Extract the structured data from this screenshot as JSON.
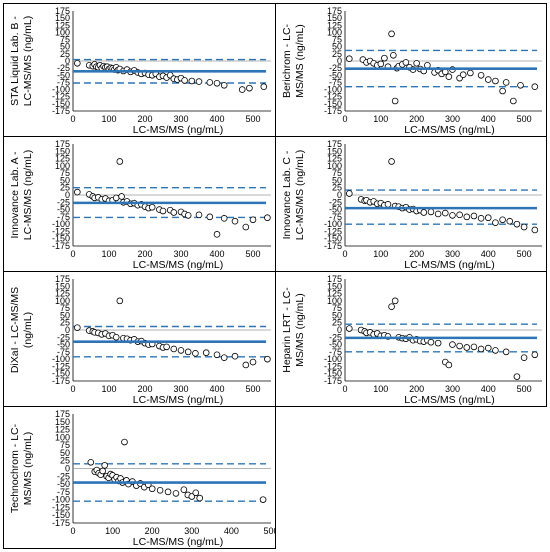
{
  "chart_data": [
    {
      "type": "scatter",
      "xlabel": "LC-MS/MS (ng/mL)",
      "ylabel_lines": [
        "STA Liquid Lab. B -",
        "LC-MS/MS (ng/mL)"
      ],
      "xlim": [
        0,
        550
      ],
      "xticks": [
        0,
        100,
        200,
        300,
        400,
        500
      ],
      "ylim": [
        -175,
        175
      ],
      "yticks": [
        175,
        150,
        125,
        100,
        75,
        50,
        25,
        0,
        -25,
        -50,
        -75,
        -100,
        -125,
        -150,
        -175
      ],
      "bias": -36,
      "loa_upper": 5,
      "loa_lower": -77,
      "x": [
        12,
        45,
        55,
        60,
        65,
        70,
        75,
        80,
        85,
        90,
        95,
        100,
        105,
        110,
        115,
        120,
        125,
        130,
        140,
        150,
        160,
        170,
        180,
        190,
        200,
        210,
        220,
        230,
        240,
        250,
        260,
        270,
        280,
        290,
        300,
        310,
        330,
        350,
        380,
        400,
        420,
        470,
        490,
        530
      ],
      "y": [
        -8,
        -15,
        -18,
        -12,
        -20,
        -22,
        -15,
        -25,
        -18,
        -22,
        -20,
        -28,
        -24,
        -26,
        -30,
        -22,
        -32,
        -28,
        -35,
        -30,
        -38,
        -33,
        -40,
        -45,
        -42,
        -48,
        -50,
        -45,
        -55,
        -52,
        -58,
        -50,
        -62,
        -65,
        -60,
        -68,
        -70,
        -72,
        -75,
        -78,
        -85,
        -100,
        -95,
        -90
      ]
    },
    {
      "type": "scatter",
      "xlabel": "LC-MS/MS (ng/mL)",
      "ylabel_lines": [
        "Berichrom - LC-",
        "MS/MS (ng/mL)"
      ],
      "xlim": [
        0,
        550
      ],
      "xticks": [
        0,
        100,
        200,
        300,
        400,
        500
      ],
      "ylim": [
        -175,
        175
      ],
      "yticks": [
        175,
        150,
        125,
        100,
        75,
        50,
        25,
        0,
        -25,
        -50,
        -75,
        -100,
        -125,
        -150,
        -175
      ],
      "bias": -27,
      "loa_upper": 37,
      "loa_lower": -90,
      "x": [
        12,
        50,
        60,
        70,
        80,
        90,
        100,
        110,
        120,
        130,
        135,
        140,
        145,
        150,
        160,
        170,
        180,
        190,
        200,
        210,
        220,
        230,
        250,
        260,
        270,
        280,
        290,
        300,
        320,
        330,
        350,
        380,
        400,
        420,
        440,
        450,
        470,
        490,
        530
      ],
      "y": [
        8,
        5,
        -5,
        0,
        -8,
        -15,
        -10,
        10,
        -20,
        95,
        20,
        -140,
        -25,
        -18,
        -12,
        -5,
        -22,
        -30,
        -8,
        -28,
        -35,
        -15,
        -40,
        -32,
        -45,
        -38,
        -55,
        -30,
        -60,
        -48,
        -42,
        -50,
        -65,
        -70,
        -105,
        -75,
        -140,
        -85,
        -90
      ]
    },
    {
      "type": "scatter",
      "xlabel": "LC-MS/MS (ng/mL)",
      "ylabel_lines": [
        "Innovance Lab. A -",
        "LC-MS/MS (ng/mL)"
      ],
      "xlim": [
        0,
        550
      ],
      "xticks": [
        0,
        100,
        200,
        300,
        400,
        500
      ],
      "ylim": [
        -175,
        175
      ],
      "yticks": [
        175,
        150,
        125,
        100,
        75,
        50,
        25,
        0,
        -25,
        -50,
        -75,
        -100,
        -125,
        -150,
        -175
      ],
      "bias": -27,
      "loa_upper": 25,
      "loa_lower": -77,
      "x": [
        12,
        45,
        55,
        60,
        70,
        80,
        90,
        100,
        110,
        120,
        130,
        135,
        140,
        150,
        160,
        170,
        180,
        190,
        200,
        210,
        220,
        240,
        250,
        270,
        280,
        300,
        310,
        320,
        350,
        380,
        400,
        420,
        450,
        480,
        500,
        540
      ],
      "y": [
        10,
        2,
        -5,
        -10,
        -8,
        -15,
        -12,
        -20,
        -18,
        -10,
        115,
        -5,
        -25,
        -22,
        -30,
        -28,
        -35,
        -32,
        -40,
        -45,
        -42,
        -50,
        -55,
        -52,
        -60,
        -58,
        -65,
        -70,
        -68,
        -75,
        -135,
        -80,
        -90,
        -110,
        -85,
        -78
      ]
    },
    {
      "type": "scatter",
      "xlabel": "LC-MS/MS (ng/mL)",
      "ylabel_lines": [
        "Innovance Lab. C -",
        "LC-MS/MS (ng/mL)"
      ],
      "xlim": [
        0,
        550
      ],
      "xticks": [
        0,
        100,
        200,
        300,
        400,
        500
      ],
      "ylim": [
        -175,
        175
      ],
      "yticks": [
        175,
        150,
        125,
        100,
        75,
        50,
        25,
        0,
        -25,
        -50,
        -75,
        -100,
        -125,
        -150,
        -175
      ],
      "bias": -45,
      "loa_upper": 17,
      "loa_lower": -100,
      "x": [
        12,
        45,
        55,
        60,
        70,
        80,
        90,
        100,
        110,
        120,
        130,
        140,
        150,
        160,
        170,
        180,
        190,
        200,
        210,
        220,
        240,
        260,
        280,
        300,
        320,
        340,
        360,
        380,
        400,
        420,
        440,
        460,
        480,
        500,
        530
      ],
      "y": [
        5,
        -15,
        -20,
        -18,
        -25,
        -22,
        -30,
        -28,
        -35,
        -32,
        115,
        -38,
        -40,
        -45,
        -42,
        -50,
        -48,
        -55,
        -52,
        -60,
        -58,
        -65,
        -62,
        -70,
        -68,
        -75,
        -72,
        -80,
        -78,
        -95,
        -85,
        -90,
        -100,
        -110,
        -120
      ]
    },
    {
      "type": "scatter",
      "xlabel": "LC-MS/MS (ng/mL)",
      "ylabel_lines": [
        "DiXaI - LC-MS/MS",
        "(ng/mL)"
      ],
      "xlim": [
        0,
        550
      ],
      "xticks": [
        0,
        100,
        200,
        300,
        400,
        500
      ],
      "ylim": [
        -175,
        175
      ],
      "yticks": [
        175,
        150,
        125,
        100,
        75,
        50,
        25,
        0,
        -25,
        -50,
        -75,
        -100,
        -125,
        -150,
        -175
      ],
      "bias": -40,
      "loa_upper": 12,
      "loa_lower": -92,
      "x": [
        12,
        45,
        55,
        60,
        70,
        80,
        90,
        100,
        110,
        120,
        130,
        140,
        150,
        160,
        170,
        180,
        190,
        200,
        210,
        220,
        240,
        250,
        260,
        280,
        300,
        320,
        340,
        370,
        400,
        420,
        450,
        480,
        500,
        540
      ],
      "y": [
        8,
        -2,
        -5,
        -8,
        -10,
        -15,
        -12,
        -20,
        -18,
        -25,
        100,
        -28,
        -30,
        -35,
        -32,
        -40,
        -38,
        -45,
        -50,
        -48,
        -55,
        -60,
        -58,
        -65,
        -70,
        -75,
        -80,
        -78,
        -85,
        -95,
        -90,
        -120,
        -110,
        -100
      ]
    },
    {
      "type": "scatter",
      "xlabel": "LC-MS/MS (ng/mL)",
      "ylabel_lines": [
        "Heparin LRT - LC-",
        "MS/MS (ng/mL)"
      ],
      "xlim": [
        0,
        550
      ],
      "xticks": [
        0,
        100,
        200,
        300,
        400,
        500
      ],
      "ylim": [
        -175,
        175
      ],
      "yticks": [
        175,
        150,
        125,
        100,
        75,
        50,
        25,
        0,
        -25,
        -50,
        -75,
        -100,
        -125,
        -150,
        -175
      ],
      "bias": -27,
      "loa_upper": 20,
      "loa_lower": -75,
      "x": [
        12,
        45,
        55,
        60,
        70,
        80,
        90,
        100,
        110,
        120,
        130,
        140,
        150,
        160,
        170,
        180,
        190,
        200,
        210,
        220,
        230,
        240,
        260,
        280,
        290,
        300,
        320,
        340,
        360,
        380,
        400,
        420,
        450,
        480,
        500,
        530
      ],
      "y": [
        5,
        0,
        -5,
        -10,
        -8,
        -15,
        -12,
        -20,
        -18,
        -22,
        80,
        100,
        -25,
        -28,
        -30,
        -25,
        -35,
        -32,
        -38,
        -40,
        -35,
        -42,
        -45,
        -110,
        -120,
        -50,
        -55,
        -60,
        -58,
        -65,
        -62,
        -70,
        -75,
        -160,
        -95,
        -85
      ]
    },
    {
      "type": "scatter",
      "xlabel": "LC-MS/MS (ng/mL)",
      "ylabel_lines": [
        "Technochrom - LC-",
        "MS/MS (ng/mL)"
      ],
      "xlim": [
        0,
        500
      ],
      "xticks": [
        0,
        100,
        200,
        300,
        400,
        500
      ],
      "ylim": [
        -175,
        175
      ],
      "yticks": [
        175,
        150,
        125,
        100,
        75,
        50,
        25,
        0,
        -25,
        -50,
        -75,
        -100,
        -125,
        -150,
        -175
      ],
      "bias": -45,
      "loa_upper": 15,
      "loa_lower": -105,
      "x": [
        45,
        55,
        60,
        65,
        70,
        75,
        80,
        85,
        90,
        95,
        100,
        105,
        110,
        115,
        120,
        125,
        130,
        135,
        140,
        150,
        160,
        170,
        180,
        190,
        200,
        220,
        240,
        260,
        280,
        290,
        300,
        310,
        320,
        480
      ],
      "y": [
        20,
        -10,
        -5,
        -15,
        -20,
        -8,
        10,
        -25,
        -30,
        -18,
        -22,
        -35,
        -28,
        -40,
        -32,
        -45,
        85,
        -38,
        -50,
        -42,
        -55,
        -48,
        -60,
        -52,
        -65,
        -70,
        -75,
        -80,
        -68,
        -85,
        -90,
        -78,
        -95,
        -100
      ]
    }
  ]
}
